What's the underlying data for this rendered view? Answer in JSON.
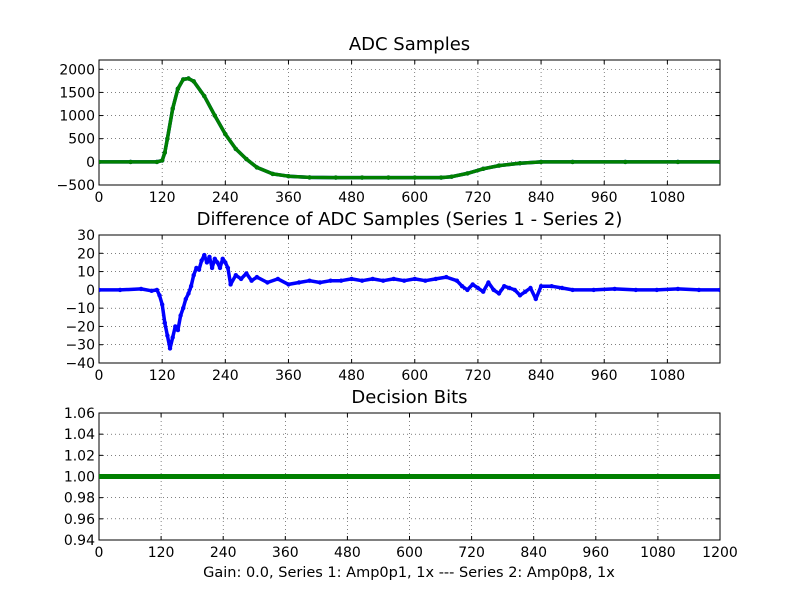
{
  "figure": {
    "xlabel": "Gain: 0.0, Series 1: Amp0p1, 1x --- Series 2: Amp0p8, 1x"
  },
  "colors": {
    "series1": "#0000ff",
    "series2": "#008000",
    "diff": "#0000ff",
    "bits": "#008000"
  },
  "chart_data": [
    {
      "type": "scatter",
      "title": "ADC Samples",
      "xlim": [
        0,
        1180
      ],
      "ylim": [
        -500,
        2200
      ],
      "xticks": [
        0,
        120,
        240,
        360,
        480,
        600,
        720,
        840,
        960,
        1080
      ],
      "xtick_labels": [
        "0",
        "120",
        "240",
        "360",
        "480",
        "600",
        "720",
        "840",
        "960",
        "1080"
      ],
      "yticks": [
        -500,
        0,
        500,
        1000,
        1500,
        2000
      ],
      "ytick_labels": [
        "−500",
        "0",
        "500",
        "1000",
        "1500",
        "2000"
      ],
      "grid": true,
      "series": [
        {
          "name": "Series 1",
          "color": "#0000ff",
          "x": [
            0,
            60,
            110,
            120,
            125,
            130,
            140,
            150,
            160,
            170,
            180,
            200,
            220,
            240,
            260,
            280,
            300,
            330,
            360,
            400,
            450,
            500,
            550,
            600,
            650,
            670,
            700,
            730,
            760,
            800,
            840,
            900,
            1000,
            1100,
            1180
          ],
          "y": [
            0,
            0,
            0,
            30,
            200,
            500,
            1150,
            1580,
            1780,
            1800,
            1740,
            1420,
            1000,
            600,
            280,
            60,
            -120,
            -260,
            -310,
            -335,
            -340,
            -340,
            -340,
            -340,
            -340,
            -320,
            -250,
            -150,
            -80,
            -30,
            0,
            0,
            0,
            0,
            0
          ]
        },
        {
          "name": "Series 2",
          "color": "#008000",
          "x": [
            0,
            60,
            110,
            120,
            125,
            130,
            140,
            150,
            160,
            170,
            180,
            200,
            220,
            240,
            260,
            280,
            300,
            330,
            360,
            400,
            450,
            500,
            550,
            600,
            650,
            670,
            700,
            730,
            760,
            800,
            840,
            900,
            1000,
            1100,
            1180
          ],
          "y": [
            0,
            0,
            0,
            30,
            200,
            500,
            1150,
            1580,
            1780,
            1800,
            1740,
            1420,
            1000,
            600,
            280,
            60,
            -120,
            -260,
            -310,
            -335,
            -340,
            -340,
            -340,
            -340,
            -340,
            -320,
            -250,
            -150,
            -80,
            -30,
            0,
            0,
            0,
            0,
            0
          ]
        }
      ]
    },
    {
      "type": "scatter",
      "title": "Difference of ADC Samples (Series 1 - Series 2)",
      "xlim": [
        0,
        1180
      ],
      "ylim": [
        -40,
        30
      ],
      "xticks": [
        0,
        120,
        240,
        360,
        480,
        600,
        720,
        840,
        960,
        1080
      ],
      "xtick_labels": [
        "0",
        "120",
        "240",
        "360",
        "480",
        "600",
        "720",
        "840",
        "960",
        "1080"
      ],
      "yticks": [
        -40,
        -30,
        -20,
        -10,
        0,
        10,
        20,
        30
      ],
      "ytick_labels": [
        "−40",
        "−30",
        "−20",
        "−10",
        "0",
        "10",
        "20",
        "30"
      ],
      "grid": true,
      "series": [
        {
          "name": "Series 1 - Series 2",
          "color": "#0000ff",
          "x": [
            0,
            40,
            80,
            100,
            110,
            115,
            120,
            125,
            130,
            135,
            140,
            145,
            150,
            155,
            160,
            165,
            170,
            175,
            180,
            185,
            190,
            195,
            200,
            205,
            210,
            215,
            220,
            225,
            230,
            235,
            240,
            245,
            250,
            260,
            270,
            280,
            290,
            300,
            320,
            340,
            360,
            380,
            400,
            420,
            440,
            460,
            480,
            500,
            520,
            540,
            560,
            580,
            600,
            620,
            640,
            660,
            680,
            690,
            700,
            710,
            720,
            730,
            740,
            750,
            760,
            770,
            780,
            790,
            800,
            810,
            820,
            830,
            840,
            860,
            880,
            900,
            940,
            980,
            1020,
            1060,
            1100,
            1140,
            1180
          ],
          "y": [
            0,
            0,
            0.5,
            -0.5,
            0,
            -3,
            -8,
            -18,
            -25,
            -32,
            -26,
            -20,
            -22,
            -14,
            -10,
            -5,
            -2,
            2,
            8,
            12,
            11,
            16,
            19,
            15,
            18,
            12,
            17,
            15,
            12,
            17,
            15,
            12,
            3,
            8,
            6,
            9,
            5,
            7,
            4,
            6,
            3,
            4,
            5,
            4,
            5,
            5,
            6,
            5,
            6,
            5,
            6,
            5,
            6,
            5,
            6,
            7,
            5,
            2,
            0,
            3,
            1,
            -1,
            4,
            0,
            -2,
            2,
            1,
            0,
            -3,
            -1,
            1,
            -5,
            2,
            2,
            1,
            0,
            0,
            0.5,
            0,
            0,
            0.5,
            0,
            0
          ]
        }
      ]
    },
    {
      "type": "scatter",
      "title": "Decision Bits",
      "xlim": [
        0,
        1200
      ],
      "ylim": [
        0.94,
        1.06
      ],
      "xticks": [
        0,
        120,
        240,
        360,
        480,
        600,
        720,
        840,
        960,
        1080,
        1200
      ],
      "xtick_labels": [
        "0",
        "120",
        "240",
        "360",
        "480",
        "600",
        "720",
        "840",
        "960",
        "1080",
        "1200"
      ],
      "yticks": [
        0.94,
        0.96,
        0.98,
        1.0,
        1.02,
        1.04,
        1.06
      ],
      "ytick_labels": [
        "0.94",
        "0.96",
        "0.98",
        "1.00",
        "1.02",
        "1.04",
        "1.06"
      ],
      "grid": true,
      "series": [
        {
          "name": "Decision Bits",
          "color": "#008000",
          "x": [
            0,
            1200
          ],
          "y": [
            1.0,
            1.0
          ]
        }
      ]
    }
  ]
}
